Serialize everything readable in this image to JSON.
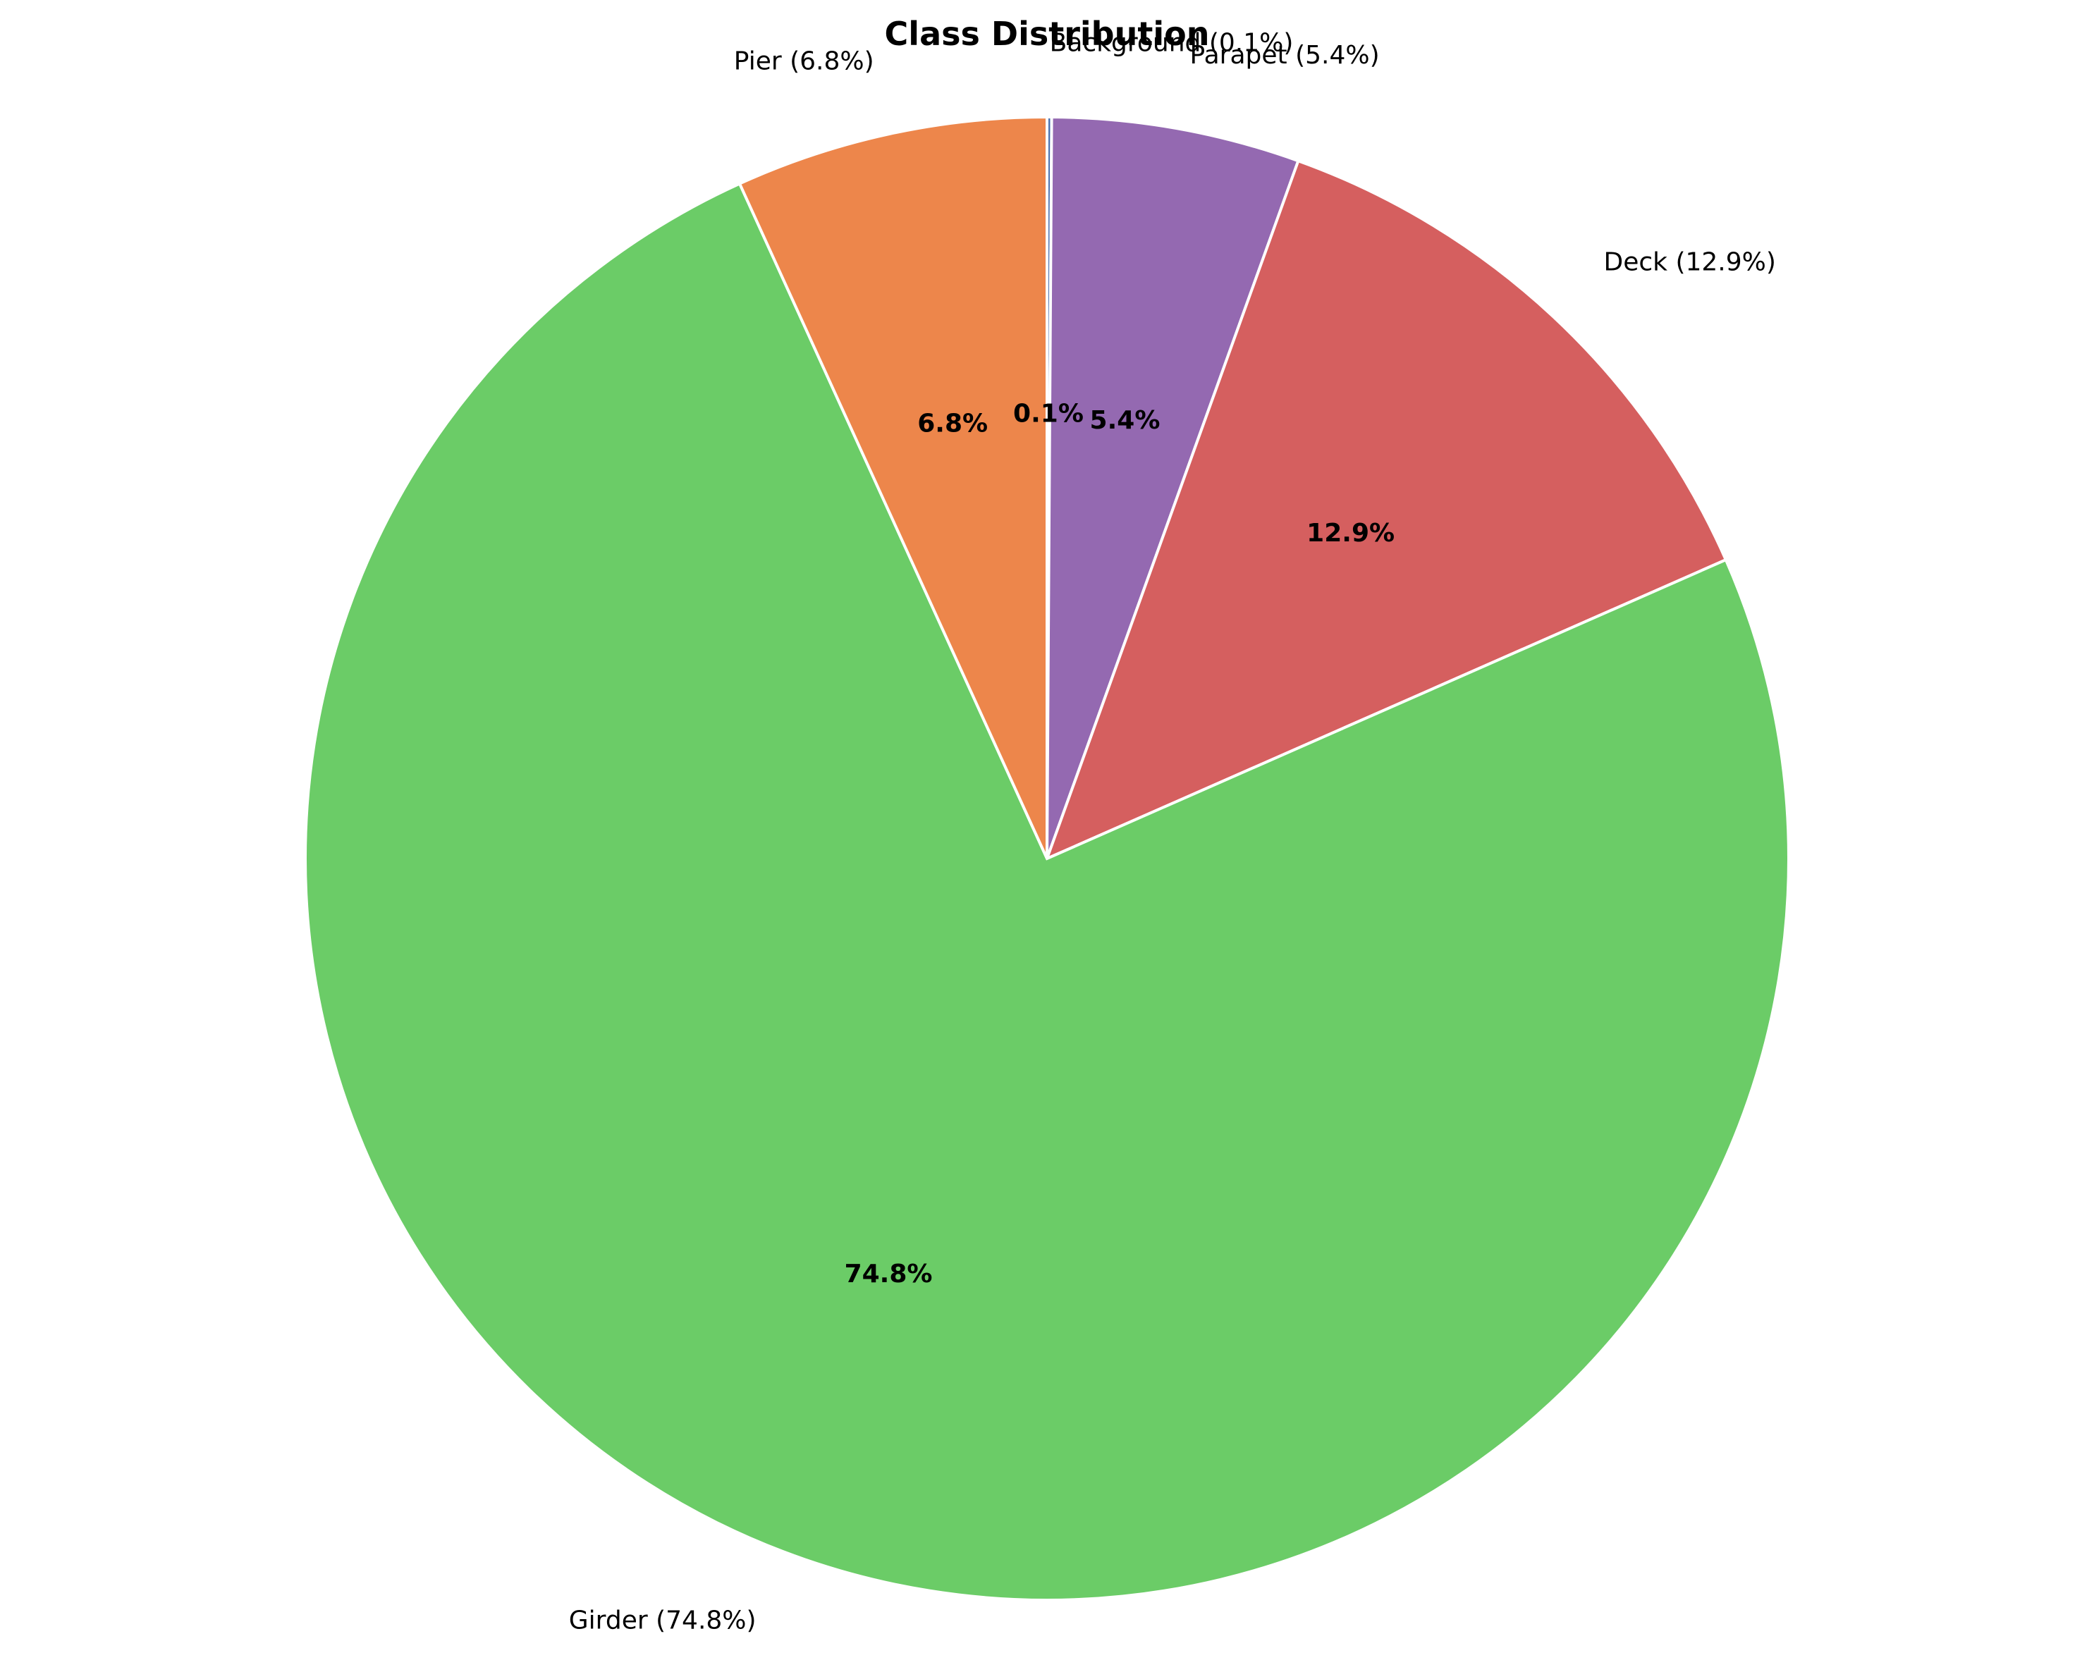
{
  "chart_data": {
    "type": "pie",
    "title": "Class Distribution",
    "labels": [
      "Background (0.1%)",
      "Parapet (5.4%)",
      "Deck (12.9%)",
      "Girder (74.8%)",
      "Pier (6.8%)"
    ],
    "slice_names": [
      "Background",
      "Parapet",
      "Deck",
      "Girder",
      "Pier"
    ],
    "values": [
      0.1,
      5.4,
      12.9,
      74.8,
      6.8
    ],
    "percent_labels": [
      "0.1%",
      "5.4%",
      "12.9%",
      "74.8%",
      "6.8%"
    ],
    "colors": [
      "#4c72b0",
      "#9469b1",
      "#d55f5f",
      "#6bcc67",
      "#ed864b"
    ],
    "start_angle_deg": 90,
    "direction": "clockwise",
    "legend": "none"
  }
}
